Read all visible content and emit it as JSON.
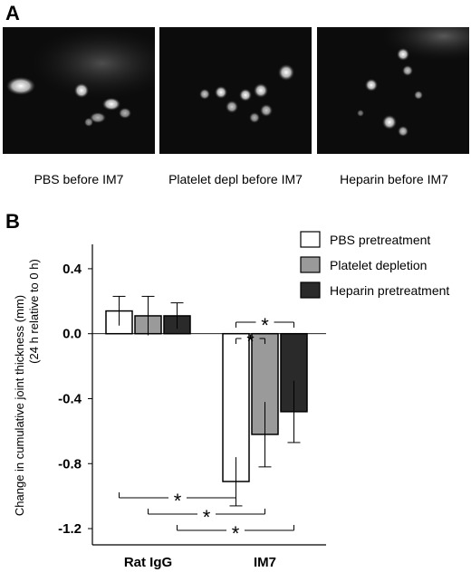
{
  "panel_a": {
    "letter": "A",
    "images": [
      {
        "caption": "PBS before IM7"
      },
      {
        "caption": "Platelet depl before IM7"
      },
      {
        "caption": "Heparin before IM7"
      }
    ]
  },
  "panel_b": {
    "letter": "B"
  },
  "chart_data": {
    "type": "bar",
    "ylabel": "Change in cumulative joint thickness (mm)",
    "ylabel2": "(24 h relative to 0 h)",
    "ylim": [
      -1.3,
      0.55
    ],
    "yticks": [
      0.4,
      0.0,
      -0.4,
      -0.8,
      -1.2
    ],
    "ytick_labels": [
      "0.4",
      "0.0",
      "-0.4",
      "-0.8",
      "-1.2"
    ],
    "categories": [
      "Rat IgG",
      "IM7"
    ],
    "series": [
      {
        "name": "PBS pretreatment",
        "values": [
          0.14,
          -0.91
        ],
        "errors": [
          0.09,
          0.15
        ],
        "color": "#ffffff"
      },
      {
        "name": "Platelet depletion",
        "values": [
          0.11,
          -0.62
        ],
        "errors": [
          0.12,
          0.2
        ],
        "color": "#9a9a9a"
      },
      {
        "name": "Heparin pretreatment",
        "values": [
          0.11,
          -0.48
        ],
        "errors": [
          0.08,
          0.19
        ],
        "color": "#2a2a2a"
      }
    ],
    "significance": [
      {
        "label": "*"
      },
      {
        "label": "*"
      },
      {
        "label": "*"
      },
      {
        "label": "*"
      },
      {
        "label": "*"
      }
    ],
    "legend_position": "top-right"
  }
}
